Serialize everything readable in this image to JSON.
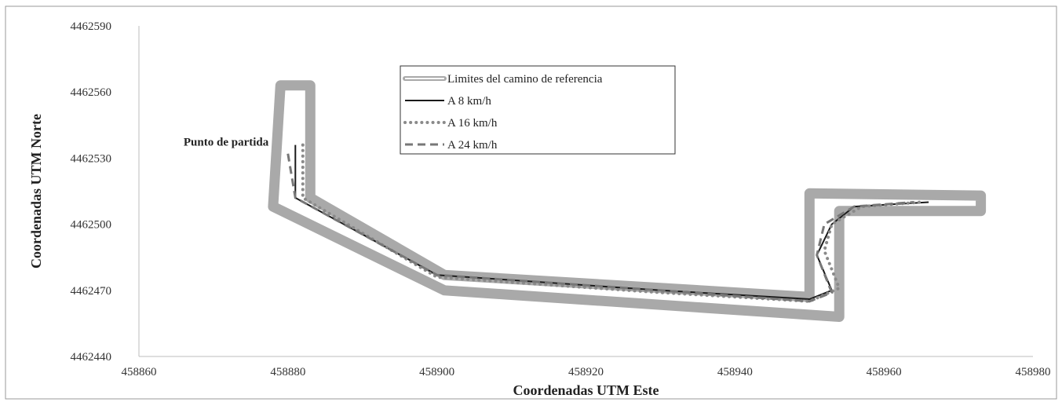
{
  "chart_data": {
    "type": "line",
    "xlabel": "Coordenadas UTM Este",
    "ylabel": "Coordenadas UTM Norte",
    "xlim": [
      458860,
      458980
    ],
    "ylim": [
      4462440,
      4462590
    ],
    "xticks": [
      "458860",
      "458880",
      "458900",
      "458920",
      "458940",
      "458960",
      "458980"
    ],
    "yticks": [
      "4462440",
      "4462470",
      "4462500",
      "4462530",
      "4462560",
      "4462590"
    ],
    "grid": false,
    "legend_position": "top-center",
    "annotation": {
      "text": "Punto de partida",
      "x": 458872,
      "y": 4462536
    },
    "series": [
      {
        "name": "Limites del camino de referencia",
        "style": "boundary",
        "color": "#a9a9a9",
        "paths": [
          [
            [
              458883,
              4462563
            ],
            [
              458883,
              4462512
            ],
            [
              458901,
              4462477
            ],
            [
              458950,
              4462467
            ],
            [
              458950,
              4462514
            ],
            [
              458973,
              4462513
            ],
            [
              458973,
              4462506
            ],
            [
              458954,
              4462506
            ],
            [
              458954,
              4462458
            ],
            [
              458901,
              4462470
            ],
            [
              458878,
              4462508
            ],
            [
              458879,
              4462563
            ],
            [
              458883,
              4462563
            ]
          ]
        ]
      },
      {
        "name": "A 8 km/h",
        "style": "solid",
        "color": "#1a1a1a",
        "paths": [
          [
            [
              458881,
              4462536
            ],
            [
              458881,
              4462512
            ],
            [
              458900,
              4462477
            ],
            [
              458930,
              4462470
            ],
            [
              458950,
              4462466
            ],
            [
              458953,
              4462470
            ],
            [
              458951,
              4462486
            ],
            [
              458953,
              4462500
            ],
            [
              458956,
              4462508
            ],
            [
              458966,
              4462510
            ]
          ]
        ]
      },
      {
        "name": "A 16 km/h",
        "style": "dotted",
        "color": "#8a8a8a",
        "paths": [
          [
            [
              458882,
              4462536
            ],
            [
              458882,
              4462512
            ],
            [
              458900,
              4462476
            ],
            [
              458930,
              4462469
            ],
            [
              458950,
              4462465
            ],
            [
              458954,
              4462471
            ],
            [
              458952,
              4462488
            ],
            [
              458953,
              4462500
            ],
            [
              458957,
              4462508
            ],
            [
              458965,
              4462510
            ]
          ]
        ]
      },
      {
        "name": "A 24 km/h",
        "style": "dashed",
        "color": "#777777",
        "paths": [
          [
            [
              458880,
              4462532
            ],
            [
              458881,
              4462512
            ],
            [
              458900,
              4462477
            ],
            [
              458930,
              4462470
            ],
            [
              458950,
              4462465
            ],
            [
              458953,
              4462469
            ],
            [
              458951,
              4462486
            ],
            [
              458952,
              4462500
            ],
            [
              458956,
              4462508
            ],
            [
              458964,
              4462510
            ]
          ]
        ]
      }
    ]
  }
}
